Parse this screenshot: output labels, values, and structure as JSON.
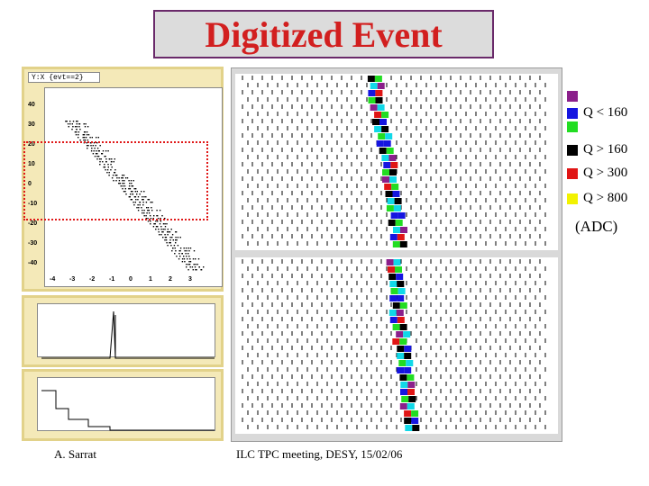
{
  "title": "Digitized Event",
  "scatter": {
    "header": "Y:X {evt==2}",
    "y_ticks": [
      "40",
      "30",
      "20",
      "10",
      "0",
      "-10",
      "-20",
      "-30",
      "-40"
    ],
    "x_ticks": [
      "-4",
      "-3",
      "-2",
      "-1",
      "0",
      "1",
      "2",
      "3"
    ]
  },
  "legend": {
    "items": [
      {
        "label": "",
        "color": "#8b1f8b"
      },
      {
        "label": "Q < 160",
        "color": "#1515e0"
      },
      {
        "label": "",
        "color": "#22dd22"
      },
      {
        "label": "Q > 160",
        "color": "#000000"
      },
      {
        "label": "Q > 300",
        "color": "#e01515"
      },
      {
        "label": "Q > 800",
        "color": "#f2f200"
      }
    ],
    "unit": "(ADC)"
  },
  "pad_colors": {
    "purple": "#8b1f8b",
    "blue": "#1515e0",
    "green": "#22dd22",
    "black": "#000000",
    "red": "#e01515",
    "yellow": "#f2f200",
    "cyan": "#11d8e8"
  },
  "footer": {
    "author": "A. Sarrat",
    "meeting": "ILC TPC meeting, DESY, 15/02/06"
  }
}
